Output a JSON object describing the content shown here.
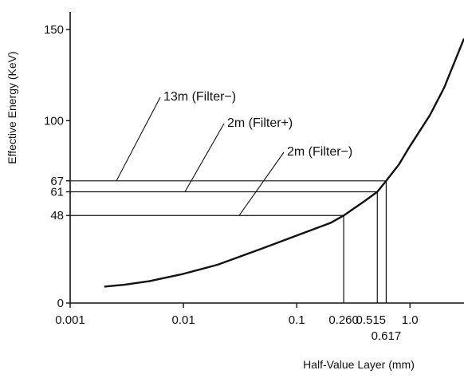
{
  "chart_data": {
    "type": "line",
    "title": "",
    "xlabel": "Half-Value Layer (mm)",
    "ylabel": "Effective Energy (KeV)",
    "x_scale": "log",
    "xlim": [
      0.001,
      3.0
    ],
    "ylim": [
      0,
      160
    ],
    "grid": false,
    "x_ticks": [
      {
        "value": 0.001,
        "label": "0.001"
      },
      {
        "value": 0.01,
        "label": "0.01"
      },
      {
        "value": 0.1,
        "label": "0.1"
      },
      {
        "value": 1.0,
        "label": "1.0"
      }
    ],
    "y_ticks": [
      {
        "value": 0,
        "label": "0"
      },
      {
        "value": 48,
        "label": "48"
      },
      {
        "value": 61,
        "label": "61"
      },
      {
        "value": 67,
        "label": "67"
      },
      {
        "value": 100,
        "label": "100"
      },
      {
        "value": 150,
        "label": "150"
      }
    ],
    "series": [
      {
        "x": [
          0.002,
          0.003,
          0.005,
          0.01,
          0.02,
          0.05,
          0.1,
          0.2,
          0.26,
          0.4,
          0.515,
          0.617,
          0.8,
          1.0,
          1.5,
          2.0,
          3.0
        ],
        "y": [
          9,
          10,
          12,
          16,
          21,
          30,
          37,
          44,
          48,
          56,
          61,
          67,
          76,
          86,
          103,
          118,
          145
        ]
      }
    ],
    "markers": [
      {
        "x": 0.26,
        "x_label": "0.260",
        "y": 48,
        "label": "2m (Filter−)"
      },
      {
        "x": 0.515,
        "x_label": "0.515",
        "y": 61,
        "label": "2m (Filter+)"
      },
      {
        "x": 0.617,
        "x_label": "0.617",
        "y": 67,
        "label": "13m (Filter−)"
      }
    ]
  }
}
